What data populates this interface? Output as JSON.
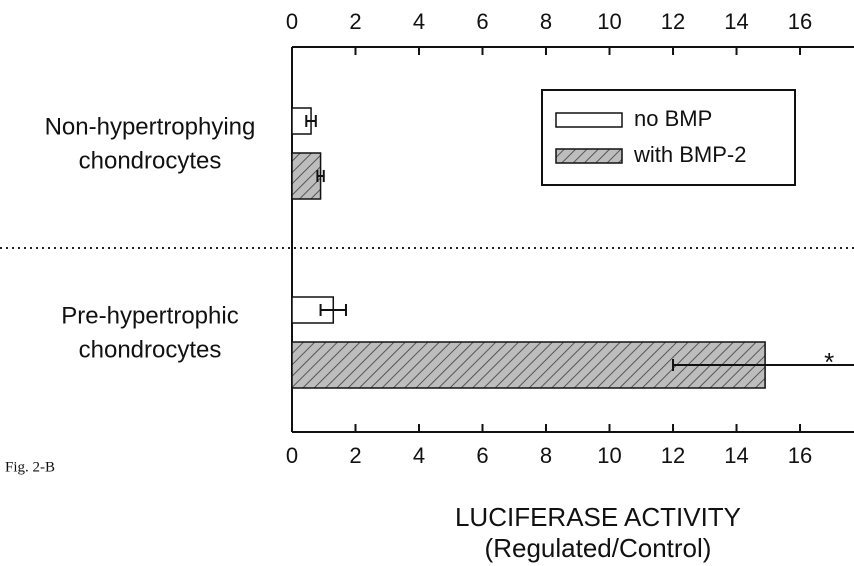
{
  "chart_data": {
    "type": "hbar",
    "categories": [
      [
        "Non-hypertrophying",
        "chondrocytes"
      ],
      [
        "Pre-hypertrophic",
        "chondrocytes"
      ]
    ],
    "series": [
      {
        "name": "no BMP",
        "color": "#ffffff",
        "hatch": false,
        "values": [
          0.6,
          1.3
        ],
        "errors": [
          0.15,
          0.4
        ]
      },
      {
        "name": "with BMP-2",
        "color": "#b8b8b8",
        "hatch": true,
        "values": [
          0.9,
          14.9
        ],
        "errors": [
          0.1,
          2.9
        ]
      }
    ],
    "annotation": "*",
    "xlabel": [
      "LUCIFERASE ACTIVITY",
      "(Regulated/Control)"
    ],
    "caption": "Fig. 2-B",
    "xlim": [
      0,
      17.7
    ],
    "xticks": [
      0,
      2,
      4,
      6,
      8,
      10,
      12,
      14,
      16
    ],
    "legend": "upper right"
  }
}
